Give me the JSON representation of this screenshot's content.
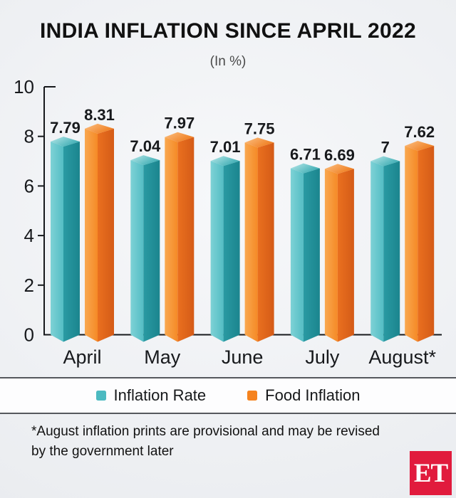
{
  "header": {
    "title": "INDIA INFLATION SINCE APRIL 2022",
    "subtitle": "(In %)"
  },
  "chart_data": {
    "type": "bar",
    "title": "INDIA INFLATION SINCE APRIL 2022",
    "subtitle_unit": "(In %)",
    "categories": [
      "April",
      "May",
      "June",
      "July",
      "August*"
    ],
    "series": [
      {
        "name": "Inflation Rate",
        "color": "#4cbac1",
        "values": [
          7.79,
          7.04,
          7.01,
          6.71,
          7
        ]
      },
      {
        "name": "Food Inflation",
        "color": "#f5831f",
        "values": [
          8.31,
          7.97,
          7.75,
          6.69,
          7.62
        ]
      }
    ],
    "xlabel": "",
    "ylabel": "",
    "ylim": [
      0,
      10
    ],
    "yticks": [
      0,
      2,
      4,
      6,
      8,
      10
    ],
    "grid": false,
    "legend_position": "bottom",
    "value_labels": true
  },
  "footnote": {
    "line1": "*August inflation prints are provisional and may be revised",
    "line2": "by the government later"
  },
  "logo": {
    "text": "ET",
    "background": "#e11b3d"
  }
}
